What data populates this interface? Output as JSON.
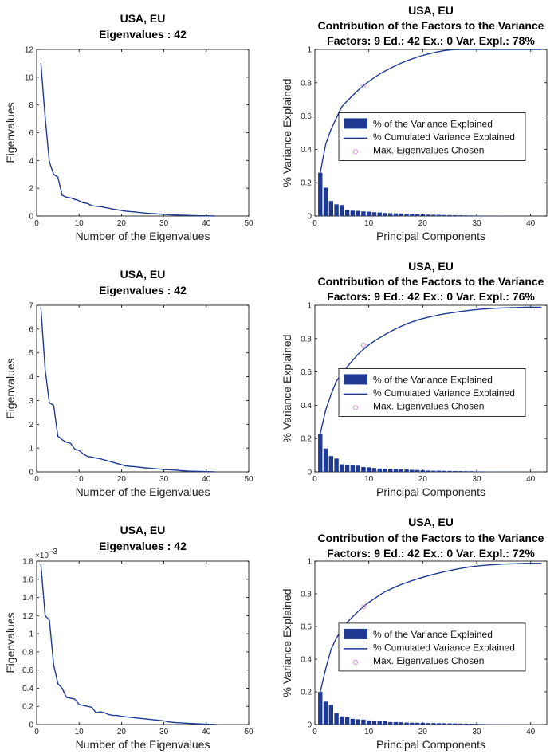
{
  "colors": {
    "line": "#1f3a93",
    "bar": "#1f3a93",
    "marker": "#d39ad3",
    "axis": "#000000"
  },
  "chart_data": [
    {
      "type": "line",
      "title": "USA, EU",
      "subtitle": "Eigenvalues : 42",
      "xlabel": "Number of the Eigenvalues",
      "ylabel": "Eigenvalues",
      "xlim": [
        0,
        50
      ],
      "ylim": [
        0,
        12
      ],
      "xticks": [
        "0",
        "10",
        "20",
        "30",
        "40",
        "50"
      ],
      "yticks": [
        "0",
        "2",
        "4",
        "6",
        "8",
        "10",
        "12"
      ],
      "exponent_label": "",
      "x": [
        1,
        2,
        3,
        4,
        5,
        6,
        7,
        8,
        9,
        10,
        11,
        12,
        13,
        14,
        15,
        16,
        17,
        18,
        19,
        20,
        21,
        22,
        23,
        24,
        25,
        26,
        27,
        28,
        29,
        30,
        31,
        32,
        33,
        34,
        35,
        36,
        37,
        38,
        39,
        40,
        41,
        42
      ],
      "values": [
        11.0,
        7.1,
        3.9,
        3.0,
        2.8,
        1.5,
        1.35,
        1.3,
        1.2,
        1.1,
        0.95,
        0.9,
        0.75,
        0.7,
        0.68,
        0.62,
        0.56,
        0.5,
        0.45,
        0.4,
        0.35,
        0.32,
        0.3,
        0.26,
        0.23,
        0.2,
        0.18,
        0.16,
        0.14,
        0.12,
        0.1,
        0.08,
        0.07,
        0.06,
        0.05,
        0.04,
        0.03,
        0.025,
        0.02,
        0.015,
        0.01,
        0.005
      ]
    },
    {
      "type": "bar",
      "title": "USA, EU",
      "subtitle": "Contribution of the Factors to the Variance",
      "info": "Factors: 9 Ed.: 42 Ex.: 0 Var. Expl.: 78%",
      "xlabel": "Principal Components",
      "ylabel": "% Variance Explained",
      "xlim": [
        0,
        43
      ],
      "ylim": [
        0,
        1
      ],
      "xticks": [
        "0",
        "10",
        "20",
        "30",
        "40"
      ],
      "yticks": [
        "0",
        "0.2",
        "0.4",
        "0.6",
        "0.8",
        "1"
      ],
      "legend": [
        "% of the Variance Explained",
        "% Cumulated Variance Explained",
        "Max. Eigenvalues Chosen"
      ],
      "series": [
        {
          "name": "% of the Variance Explained",
          "values": [
            0.26,
            0.17,
            0.09,
            0.07,
            0.066,
            0.035,
            0.032,
            0.031,
            0.028,
            0.026,
            0.023,
            0.021,
            0.018,
            0.017,
            0.016,
            0.015,
            0.013,
            0.012,
            0.011,
            0.0095,
            0.0083,
            0.0076,
            0.0071,
            0.0062,
            0.0055,
            0.0048,
            0.0043,
            0.0038,
            0.0033,
            0.0029,
            0.0024,
            0.0019,
            0.0017,
            0.0014,
            0.0012,
            0.001,
            0.0007,
            0.0006,
            0.0005,
            0.0004,
            0.0002,
            0.0001
          ]
        },
        {
          "name": "% Cumulated Variance Explained",
          "values": [
            0.26,
            0.43,
            0.52,
            0.59,
            0.656,
            0.691,
            0.723,
            0.754,
            0.782,
            0.808,
            0.831,
            0.852,
            0.87,
            0.887,
            0.903,
            0.918,
            0.931,
            0.943,
            0.954,
            0.964,
            0.972,
            0.98,
            0.987,
            0.993,
            0.997,
            0.999,
            1,
            1,
            1,
            1,
            1,
            1,
            1,
            1,
            1,
            1,
            1,
            1,
            1,
            1,
            1,
            1
          ]
        }
      ],
      "chosen": {
        "x": 9,
        "y": 0.782
      }
    },
    {
      "type": "line",
      "title": "USA, EU",
      "subtitle": "Eigenvalues : 42",
      "xlabel": "Number of the Eigenvalues",
      "ylabel": "Eigenvalues",
      "xlim": [
        0,
        50
      ],
      "ylim": [
        0,
        7
      ],
      "xticks": [
        "0",
        "10",
        "20",
        "30",
        "40",
        "50"
      ],
      "yticks": [
        "0",
        "1",
        "2",
        "3",
        "4",
        "5",
        "6",
        "7"
      ],
      "exponent_label": "",
      "x": [
        1,
        2,
        3,
        4,
        5,
        6,
        7,
        8,
        9,
        10,
        11,
        12,
        13,
        14,
        15,
        16,
        17,
        18,
        19,
        20,
        21,
        22,
        23,
        24,
        25,
        26,
        27,
        28,
        29,
        30,
        31,
        32,
        33,
        34,
        35,
        36,
        37,
        38,
        39,
        40,
        41,
        42
      ],
      "values": [
        6.9,
        4.3,
        2.9,
        2.8,
        1.5,
        1.35,
        1.25,
        1.2,
        0.95,
        0.9,
        0.75,
        0.65,
        0.62,
        0.58,
        0.55,
        0.5,
        0.45,
        0.4,
        0.35,
        0.3,
        0.25,
        0.23,
        0.22,
        0.2,
        0.18,
        0.16,
        0.15,
        0.13,
        0.12,
        0.1,
        0.09,
        0.08,
        0.07,
        0.05,
        0.04,
        0.03,
        0.025,
        0.02,
        0.015,
        0.01,
        0.005,
        0.002
      ]
    },
    {
      "type": "bar",
      "title": "USA, EU",
      "subtitle": "Contribution of the Factors to the Variance",
      "info": "Factors: 9 Ed.: 42 Ex.: 0 Var. Expl.: 76%",
      "xlabel": "Principal Components",
      "ylabel": "% Variance Explained",
      "xlim": [
        0,
        43
      ],
      "ylim": [
        0,
        1
      ],
      "xticks": [
        "0",
        "10",
        "20",
        "30",
        "40"
      ],
      "yticks": [
        "0",
        "0.2",
        "0.4",
        "0.6",
        "0.8",
        "1"
      ],
      "legend": [
        "% of the Variance Explained",
        "% Cumulated Variance Explained",
        "Max. Eigenvalues Chosen"
      ],
      "series": [
        {
          "name": "% of the Variance Explained",
          "values": [
            0.23,
            0.14,
            0.095,
            0.08,
            0.045,
            0.041,
            0.038,
            0.037,
            0.029,
            0.027,
            0.023,
            0.02,
            0.019,
            0.018,
            0.017,
            0.015,
            0.014,
            0.012,
            0.011,
            0.009,
            0.0076,
            0.007,
            0.0067,
            0.0061,
            0.0055,
            0.0049,
            0.0046,
            0.004,
            0.0037,
            0.003,
            0.0027,
            0.0024,
            0.0021,
            0.0015,
            0.0012,
            0.0009,
            0.0008,
            0.0006,
            0.0005,
            0.0003,
            0.0002,
            0.0001
          ]
        },
        {
          "name": "% Cumulated Variance Explained",
          "values": [
            0.23,
            0.37,
            0.465,
            0.545,
            0.59,
            0.631,
            0.669,
            0.706,
            0.735,
            0.762,
            0.785,
            0.805,
            0.824,
            0.842,
            0.859,
            0.874,
            0.888,
            0.9,
            0.911,
            0.92,
            0.928,
            0.935,
            0.942,
            0.948,
            0.953,
            0.958,
            0.963,
            0.967,
            0.971,
            0.974,
            0.977,
            0.979,
            0.981,
            0.983,
            0.984,
            0.985,
            0.986,
            0.987,
            0.988,
            0.988,
            0.988,
            0.988
          ]
        }
      ],
      "chosen": {
        "x": 9,
        "y": 0.76
      }
    },
    {
      "type": "line",
      "title": "USA, EU",
      "subtitle": "Eigenvalues : 42",
      "xlabel": "Number of the Eigenvalues",
      "ylabel": "Eigenvalues",
      "xlim": [
        0,
        50
      ],
      "ylim": [
        0,
        1.8
      ],
      "xticks": [
        "0",
        "10",
        "20",
        "30",
        "40",
        "50"
      ],
      "yticks": [
        "0",
        "0.2",
        "0.4",
        "0.6",
        "0.8",
        "1",
        "1.2",
        "1.4",
        "1.6",
        "1.8"
      ],
      "exponent_label": "×10",
      "exponent_power": "-3",
      "x": [
        1,
        2,
        3,
        4,
        5,
        6,
        7,
        8,
        9,
        10,
        11,
        12,
        13,
        14,
        15,
        16,
        17,
        18,
        19,
        20,
        21,
        22,
        23,
        24,
        25,
        26,
        27,
        28,
        29,
        30,
        31,
        32,
        33,
        34,
        35,
        36,
        37,
        38,
        39,
        40,
        41,
        42
      ],
      "values": [
        1.76,
        1.2,
        1.15,
        0.66,
        0.45,
        0.4,
        0.3,
        0.29,
        0.28,
        0.22,
        0.21,
        0.2,
        0.19,
        0.13,
        0.14,
        0.13,
        0.11,
        0.1,
        0.1,
        0.09,
        0.085,
        0.08,
        0.075,
        0.07,
        0.065,
        0.06,
        0.055,
        0.05,
        0.045,
        0.04,
        0.03,
        0.025,
        0.02,
        0.018,
        0.015,
        0.012,
        0.01,
        0.008,
        0.006,
        0.004,
        0.003,
        0.002
      ]
    },
    {
      "type": "bar",
      "title": "USA, EU",
      "subtitle": "Contribution of the Factors to the Variance",
      "info": "Factors: 9 Ed.: 42 Ex.: 0 Var. Expl.: 72%",
      "xlabel": "Principal Components",
      "ylabel": "% Variance Explained",
      "xlim": [
        0,
        43
      ],
      "ylim": [
        0,
        1
      ],
      "xticks": [
        "0",
        "10",
        "20",
        "30",
        "40"
      ],
      "yticks": [
        "0",
        "0.2",
        "0.4",
        "0.6",
        "0.8",
        "1"
      ],
      "legend": [
        "% of the Variance Explained",
        "% Cumulated Variance Explained",
        "Max. Eigenvalues Chosen"
      ],
      "series": [
        {
          "name": "% of the Variance Explained",
          "values": [
            0.2,
            0.14,
            0.12,
            0.07,
            0.05,
            0.045,
            0.035,
            0.032,
            0.03,
            0.025,
            0.023,
            0.022,
            0.021,
            0.015,
            0.015,
            0.014,
            0.012,
            0.011,
            0.011,
            0.01,
            0.009,
            0.0088,
            0.0082,
            0.0077,
            0.0071,
            0.0066,
            0.006,
            0.0055,
            0.005,
            0.0044,
            0.0033,
            0.0027,
            0.0022,
            0.002,
            0.0016,
            0.0013,
            0.0011,
            0.0009,
            0.0007,
            0.0004,
            0.0003,
            0.0002
          ]
        },
        {
          "name": "% Cumulated Variance Explained",
          "values": [
            0.2,
            0.34,
            0.46,
            0.53,
            0.58,
            0.625,
            0.66,
            0.692,
            0.722,
            0.747,
            0.77,
            0.792,
            0.813,
            0.828,
            0.843,
            0.857,
            0.869,
            0.88,
            0.891,
            0.901,
            0.91,
            0.919,
            0.927,
            0.935,
            0.942,
            0.949,
            0.955,
            0.961,
            0.966,
            0.97,
            0.973,
            0.976,
            0.978,
            0.98,
            0.982,
            0.983,
            0.984,
            0.985,
            0.986,
            0.986,
            0.986,
            0.986
          ]
        }
      ],
      "chosen": {
        "x": 9,
        "y": 0.72
      }
    }
  ]
}
